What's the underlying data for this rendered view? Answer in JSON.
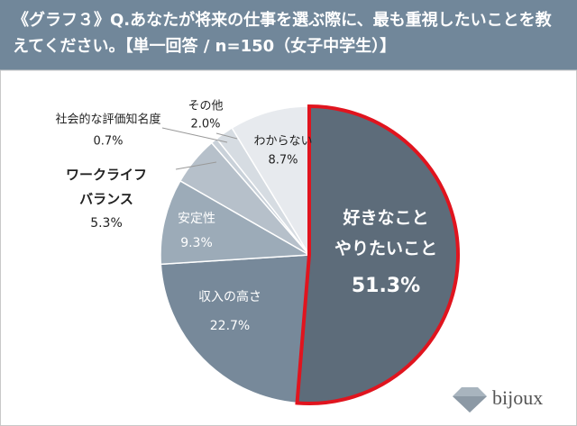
{
  "chart_data": {
    "type": "pie",
    "title": "《グラフ３》Q.あなたが将来の仕事を選ぶ際に、最も重視したいことを教えてください。【単一回答 / n=150（女子中学生）】",
    "categories": [
      "好きなこと\nやりたいこと",
      "収入の高さ",
      "安定性",
      "ワークライフ\nバランス",
      "社会的な評価知名度",
      "その他",
      "わからない"
    ],
    "values": [
      51.3,
      22.7,
      9.3,
      5.3,
      0.7,
      2.0,
      8.7
    ],
    "value_labels": [
      "51.3%",
      "22.7%",
      "9.3%",
      "5.3%",
      "0.7%",
      "2.0%",
      "8.7%"
    ],
    "colors": [
      "#5d6c7a",
      "#77899a",
      "#9cabb8",
      "#b6c0ca",
      "#c9d1d9",
      "#d6dce2",
      "#e7eaee"
    ],
    "highlight_color": "#e0141e",
    "brand": "bijoux"
  }
}
